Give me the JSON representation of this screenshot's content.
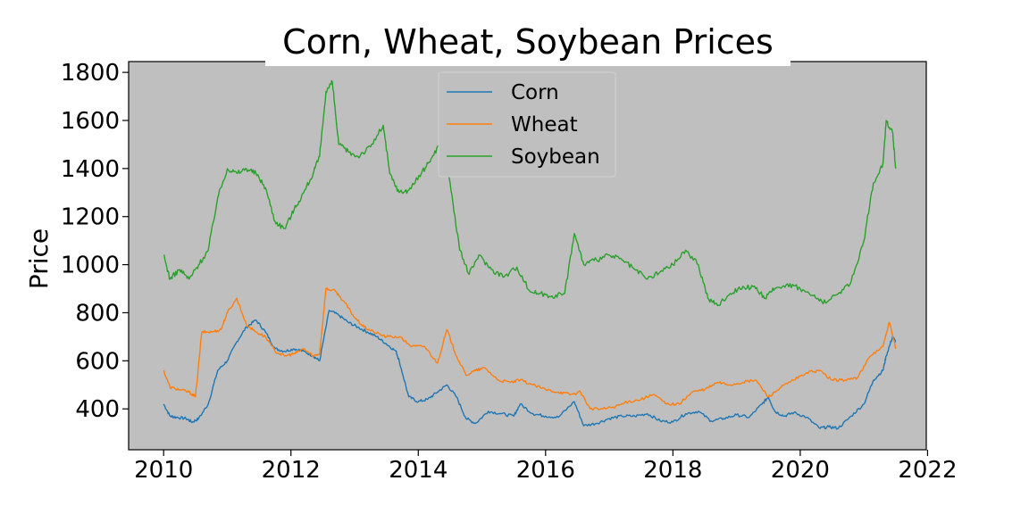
{
  "chart_data": {
    "type": "line",
    "title": "Corn, Wheat, Soybean Prices",
    "xlabel": "",
    "ylabel": "Price",
    "xlim": [
      2009.45,
      2021.98
    ],
    "ylim": [
      230,
      1845
    ],
    "xticks": [
      2010,
      2012,
      2014,
      2016,
      2018,
      2020,
      2022
    ],
    "xtick_labels": [
      "2010",
      "2012",
      "2014",
      "2016",
      "2018",
      "2020",
      "2022"
    ],
    "yticks": [
      400,
      600,
      800,
      1000,
      1200,
      1400,
      1600,
      1800
    ],
    "ytick_labels": [
      "400",
      "600",
      "800",
      "1000",
      "1200",
      "1400",
      "1600",
      "1800"
    ],
    "grid": false,
    "background": "#bfbfbf",
    "legend_position": "upper-center",
    "series": [
      {
        "name": "Corn",
        "color": "#1f77b4",
        "x": [
          2010.0,
          2010.1,
          2010.2,
          2010.35,
          2010.45,
          2010.55,
          2010.7,
          2010.85,
          2011.0,
          2011.15,
          2011.3,
          2011.45,
          2011.6,
          2011.75,
          2011.9,
          2012.05,
          2012.2,
          2012.35,
          2012.45,
          2012.6,
          2012.75,
          2012.9,
          2013.05,
          2013.2,
          2013.35,
          2013.5,
          2013.65,
          2013.7,
          2013.85,
          2014.0,
          2014.15,
          2014.3,
          2014.45,
          2014.6,
          2014.75,
          2014.9,
          2015.1,
          2015.3,
          2015.5,
          2015.6,
          2015.8,
          2016.0,
          2016.2,
          2016.45,
          2016.6,
          2016.8,
          2017.0,
          2017.2,
          2017.4,
          2017.6,
          2017.8,
          2018.0,
          2018.2,
          2018.4,
          2018.6,
          2018.8,
          2019.0,
          2019.2,
          2019.4,
          2019.5,
          2019.6,
          2019.75,
          2019.9,
          2020.1,
          2020.3,
          2020.45,
          2020.6,
          2020.8,
          2021.0,
          2021.15,
          2021.3,
          2021.35,
          2021.45,
          2021.5
        ],
        "values": [
          420,
          370,
          365,
          360,
          345,
          360,
          420,
          560,
          600,
          680,
          740,
          770,
          720,
          650,
          640,
          650,
          640,
          620,
          600,
          810,
          790,
          760,
          740,
          720,
          700,
          670,
          640,
          600,
          450,
          430,
          440,
          470,
          500,
          450,
          360,
          340,
          390,
          380,
          370,
          420,
          380,
          370,
          365,
          430,
          330,
          340,
          360,
          370,
          370,
          380,
          350,
          345,
          380,
          390,
          350,
          360,
          375,
          365,
          420,
          450,
          390,
          370,
          385,
          365,
          320,
          325,
          320,
          370,
          420,
          520,
          560,
          620,
          700,
          680
        ]
      },
      {
        "name": "Wheat",
        "color": "#ff7f0e",
        "x": [
          2010.0,
          2010.1,
          2010.25,
          2010.4,
          2010.5,
          2010.6,
          2010.75,
          2010.9,
          2011.0,
          2011.15,
          2011.3,
          2011.45,
          2011.6,
          2011.75,
          2011.9,
          2012.05,
          2012.2,
          2012.35,
          2012.45,
          2012.55,
          2012.7,
          2012.85,
          2013.0,
          2013.15,
          2013.3,
          2013.5,
          2013.7,
          2013.9,
          2014.1,
          2014.3,
          2014.45,
          2014.6,
          2014.75,
          2014.9,
          2015.05,
          2015.25,
          2015.45,
          2015.6,
          2015.8,
          2016.0,
          2016.2,
          2016.4,
          2016.55,
          2016.7,
          2016.9,
          2017.1,
          2017.3,
          2017.5,
          2017.7,
          2017.9,
          2018.1,
          2018.3,
          2018.5,
          2018.7,
          2018.9,
          2019.1,
          2019.3,
          2019.5,
          2019.7,
          2019.9,
          2020.1,
          2020.3,
          2020.5,
          2020.7,
          2020.9,
          2021.1,
          2021.3,
          2021.4,
          2021.5
        ],
        "values": [
          560,
          490,
          480,
          470,
          450,
          720,
          720,
          730,
          800,
          860,
          750,
          720,
          700,
          640,
          620,
          630,
          650,
          620,
          630,
          900,
          890,
          840,
          780,
          740,
          720,
          700,
          700,
          660,
          660,
          590,
          730,
          620,
          540,
          560,
          570,
          520,
          510,
          520,
          500,
          480,
          470,
          460,
          470,
          400,
          400,
          410,
          430,
          440,
          460,
          420,
          420,
          470,
          480,
          510,
          500,
          510,
          520,
          450,
          490,
          520,
          550,
          560,
          520,
          520,
          530,
          620,
          660,
          760,
          650
        ]
      },
      {
        "name": "Soybean",
        "color": "#2ca02c",
        "x": [
          2010.0,
          2010.1,
          2010.25,
          2010.4,
          2010.55,
          2010.7,
          2010.85,
          2011.0,
          2011.15,
          2011.3,
          2011.45,
          2011.6,
          2011.75,
          2011.9,
          2012.05,
          2012.2,
          2012.35,
          2012.45,
          2012.55,
          2012.65,
          2012.75,
          2012.9,
          2013.05,
          2013.25,
          2013.45,
          2013.55,
          2013.7,
          2013.85,
          2014.05,
          2014.2,
          2014.35,
          2014.5,
          2014.65,
          2014.8,
          2014.95,
          2015.15,
          2015.35,
          2015.55,
          2015.75,
          2015.9,
          2016.1,
          2016.3,
          2016.45,
          2016.6,
          2016.8,
          2017.0,
          2017.2,
          2017.4,
          2017.6,
          2017.8,
          2018.0,
          2018.2,
          2018.4,
          2018.55,
          2018.7,
          2018.9,
          2019.1,
          2019.3,
          2019.45,
          2019.6,
          2019.8,
          2020.0,
          2020.2,
          2020.4,
          2020.6,
          2020.8,
          2021.0,
          2021.15,
          2021.3,
          2021.35,
          2021.45,
          2021.5
        ],
        "values": [
          1040,
          940,
          980,
          940,
          1000,
          1060,
          1280,
          1400,
          1380,
          1400,
          1380,
          1320,
          1180,
          1150,
          1230,
          1300,
          1380,
          1450,
          1720,
          1760,
          1500,
          1470,
          1450,
          1490,
          1580,
          1380,
          1300,
          1310,
          1380,
          1440,
          1510,
          1340,
          1060,
          960,
          1040,
          980,
          950,
          990,
          890,
          880,
          870,
          880,
          1130,
          1000,
          1020,
          1040,
          1020,
          980,
          940,
          970,
          1000,
          1060,
          1000,
          860,
          830,
          880,
          910,
          900,
          860,
          900,
          920,
          900,
          870,
          840,
          880,
          930,
          1100,
          1340,
          1420,
          1600,
          1550,
          1400
        ]
      }
    ]
  }
}
